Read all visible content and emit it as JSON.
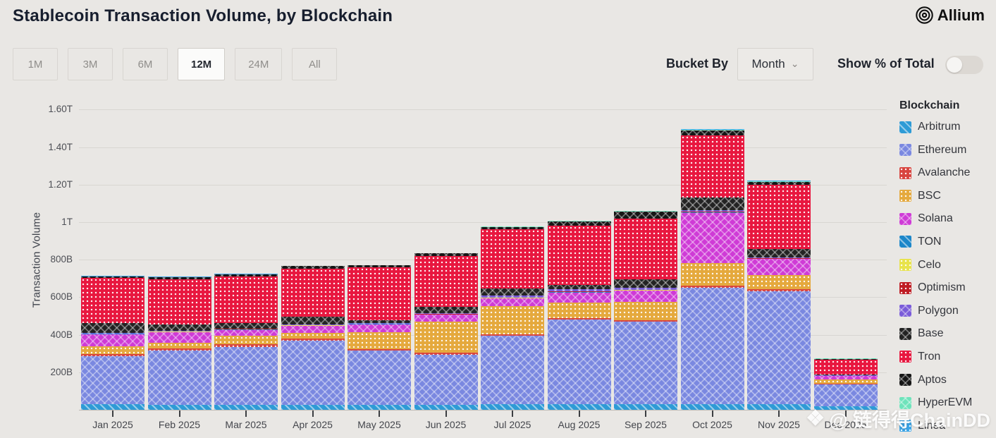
{
  "header": {
    "title": "Stablecoin Transaction Volume, by Blockchain",
    "brand": "Allium"
  },
  "controls": {
    "ranges": [
      {
        "label": "1M",
        "selected": false
      },
      {
        "label": "3M",
        "selected": false
      },
      {
        "label": "6M",
        "selected": false
      },
      {
        "label": "12M",
        "selected": true
      },
      {
        "label": "24M",
        "selected": false
      },
      {
        "label": "All",
        "selected": false
      }
    ],
    "bucket_by_label": "Bucket By",
    "bucket_value": "Month",
    "chevron": "⌄",
    "show_pct_label": "Show % of Total",
    "toggle_state": "off"
  },
  "legend": {
    "title": "Blockchain"
  },
  "watermark": {
    "icon": "❖",
    "text": "@ 链得得ChainDD"
  },
  "chart_data": {
    "type": "stacked-bar",
    "title": "Stablecoin Transaction Volume, by Blockchain",
    "ylabel": "Transaction Volume",
    "xlabel": "",
    "unit": "billions (B) of transaction volume; T = trillions",
    "grid": "horizontal",
    "legend_position": "right",
    "ylim_B": [
      0,
      1600
    ],
    "y_ticks": [
      {
        "label": "1.60T",
        "value_B": 1600
      },
      {
        "label": "1.40T",
        "value_B": 1400
      },
      {
        "label": "1.20T",
        "value_B": 1200
      },
      {
        "label": "1T",
        "value_B": 1000
      },
      {
        "label": "800B",
        "value_B": 800
      },
      {
        "label": "600B",
        "value_B": 600
      },
      {
        "label": "400B",
        "value_B": 400
      },
      {
        "label": "200B",
        "value_B": 200
      }
    ],
    "categories": [
      "Jan 2025",
      "Feb 2025",
      "Mar 2025",
      "Apr 2025",
      "May 2025",
      "Jun 2025",
      "Jul 2025",
      "Aug 2025",
      "Sep 2025",
      "Oct 2025",
      "Nov 2025",
      "Dec 2025"
    ],
    "series": [
      {
        "name": "Arbitrum",
        "color": "#2e9bd6",
        "pattern": "diag",
        "values_B": [
          30,
          25,
          25,
          25,
          25,
          25,
          29,
          29,
          29,
          30,
          30,
          20
        ]
      },
      {
        "name": "Ethereum",
        "color": "#7a88e0",
        "pattern": "cross",
        "values_B": [
          255,
          290,
          310,
          345,
          290,
          270,
          365,
          452,
          440,
          620,
          600,
          116
        ]
      },
      {
        "name": "Avalanche",
        "color": "#d8453f",
        "pattern": "dots",
        "values_B": [
          12,
          13,
          13,
          10,
          9,
          9,
          9,
          9,
          9,
          11,
          13,
          5
        ]
      },
      {
        "name": "BSC",
        "color": "#e5a93d",
        "pattern": "dots",
        "values_B": [
          40,
          31,
          48,
          30,
          88,
          165,
          148,
          80,
          98,
          123,
          74,
          19
        ]
      },
      {
        "name": "Solana",
        "color": "#cf3bd6",
        "pattern": "cross",
        "values_B": [
          66,
          54,
          30,
          37,
          43,
          37,
          43,
          55,
          59,
          266,
          86,
          19
        ]
      },
      {
        "name": "TON",
        "color": "#1d87c9",
        "pattern": "diag",
        "values_B": [
          2,
          2,
          2,
          2,
          2,
          2,
          2,
          2,
          2,
          3,
          2,
          1
        ]
      },
      {
        "name": "Celo",
        "color": "#e8e34b",
        "pattern": "dots",
        "values_B": [
          1,
          1,
          1,
          1,
          1,
          1,
          1,
          1,
          1,
          1,
          1,
          1
        ]
      },
      {
        "name": "Optimism",
        "color": "#bf1d24",
        "pattern": "dots",
        "values_B": [
          2,
          2,
          2,
          2,
          2,
          2,
          2,
          2,
          2,
          3,
          2,
          1
        ]
      },
      {
        "name": "Polygon",
        "color": "#7a5bd9",
        "pattern": "cross",
        "values_B": [
          3,
          3,
          3,
          3,
          3,
          3,
          12,
          12,
          9,
          8,
          5,
          2
        ]
      },
      {
        "name": "Base",
        "color": "#232323",
        "pattern": "cross",
        "values_B": [
          52,
          36,
          30,
          42,
          15,
          36,
          36,
          24,
          48,
          67,
          43,
          5
        ]
      },
      {
        "name": "Tron",
        "color": "#e8173f",
        "pattern": "dots",
        "values_B": [
          240,
          240,
          248,
          255,
          283,
          270,
          316,
          315,
          322,
          330,
          344,
          80
        ]
      },
      {
        "name": "Aptos",
        "color": "#161616",
        "pattern": "cross",
        "values_B": [
          8,
          10,
          10,
          15,
          9,
          14,
          12,
          24,
          38,
          28,
          16,
          3
        ]
      },
      {
        "name": "HyperEVM",
        "color": "#6fe3bb",
        "pattern": "cross",
        "values_B": [
          1,
          1,
          1,
          1,
          1,
          1,
          2,
          2,
          2,
          3,
          3,
          1
        ]
      },
      {
        "name": "Linea",
        "color": "#3ba5e8",
        "pattern": "dots",
        "values_B": [
          1,
          1,
          1,
          1,
          1,
          1,
          2,
          2,
          2,
          3,
          3,
          1
        ]
      }
    ],
    "totals_B": [
      713,
      709,
      724,
      769,
      772,
      836,
      979,
      1009,
      1061,
      1496,
      1222,
      274
    ]
  }
}
